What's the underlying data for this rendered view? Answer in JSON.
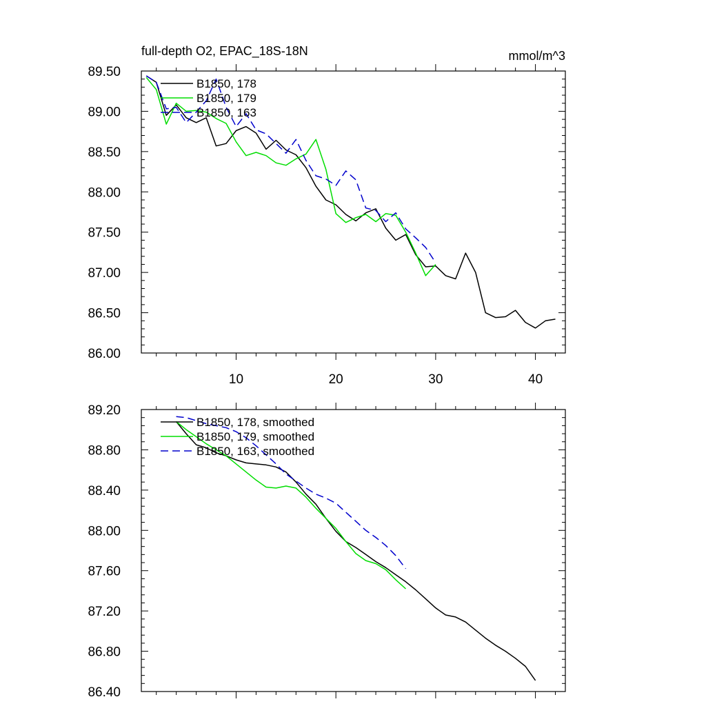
{
  "chart_data": [
    {
      "type": "line",
      "title": "full-depth O2, EPAC_18S-18N",
      "units": "mmol/m^3",
      "xlim": [
        0.5,
        43
      ],
      "ylim": [
        86.0,
        89.5
      ],
      "xticks": [
        10,
        20,
        30,
        40
      ],
      "yticks": [
        86.0,
        86.5,
        87.0,
        87.5,
        88.0,
        88.5,
        89.0,
        89.5
      ],
      "ytick_labels": [
        "86.00",
        "86.50",
        "87.00",
        "87.50",
        "88.00",
        "88.50",
        "89.00",
        "89.50"
      ],
      "xtick_labels": [
        "10",
        "20",
        "30",
        "40"
      ],
      "legend_position": "top-left",
      "series": [
        {
          "name": "B1850, 178",
          "color": "#000000",
          "dash": "solid",
          "x": [
            1,
            2,
            3,
            4,
            5,
            6,
            7,
            8,
            9,
            10,
            11,
            12,
            13,
            14,
            15,
            16,
            17,
            18,
            19,
            20,
            21,
            22,
            23,
            24,
            25,
            26,
            27,
            28,
            29,
            30,
            31,
            32,
            33,
            34,
            35,
            36,
            37,
            38,
            39,
            40,
            41,
            42
          ],
          "y": [
            89.44,
            89.36,
            88.95,
            89.08,
            88.92,
            88.86,
            88.92,
            88.57,
            88.6,
            88.76,
            88.81,
            88.73,
            88.53,
            88.64,
            88.52,
            88.46,
            88.3,
            88.07,
            87.9,
            87.84,
            87.72,
            87.64,
            87.74,
            87.79,
            87.55,
            87.4,
            87.47,
            87.22,
            87.07,
            87.08,
            86.96,
            86.92,
            87.24,
            87.0,
            86.5,
            86.44,
            86.45,
            86.53,
            86.38,
            86.31,
            86.4,
            86.42
          ]
        },
        {
          "name": "B1850, 179",
          "color": "#00dd00",
          "dash": "solid",
          "x": [
            1,
            2,
            3,
            4,
            5,
            6,
            7,
            8,
            9,
            10,
            11,
            12,
            13,
            14,
            15,
            16,
            17,
            18,
            19,
            20,
            21,
            22,
            23,
            24,
            25,
            26,
            27,
            28,
            29,
            30
          ],
          "y": [
            89.42,
            89.27,
            88.84,
            89.1,
            89.0,
            89.01,
            88.99,
            88.91,
            88.85,
            88.62,
            88.45,
            88.49,
            88.45,
            88.36,
            88.33,
            88.41,
            88.47,
            88.65,
            88.28,
            87.73,
            87.62,
            87.68,
            87.72,
            87.63,
            87.73,
            87.71,
            87.5,
            87.24,
            86.96,
            87.1
          ]
        },
        {
          "name": "B1850, 163",
          "color": "#0000cc",
          "dash": "dashed",
          "x": [
            1,
            2,
            3,
            4,
            5,
            6,
            7,
            8,
            9,
            10,
            11,
            12,
            13,
            14,
            15,
            16,
            17,
            18,
            19,
            20,
            21,
            22,
            23,
            24,
            25,
            26,
            27,
            28,
            29,
            30
          ],
          "y": [
            89.44,
            89.36,
            89.03,
            89.05,
            88.86,
            88.99,
            89.13,
            89.4,
            89.05,
            88.81,
            88.97,
            88.77,
            88.72,
            88.6,
            88.48,
            88.65,
            88.39,
            88.2,
            88.16,
            88.08,
            88.26,
            88.15,
            87.8,
            87.77,
            87.63,
            87.74,
            87.54,
            87.43,
            87.31,
            87.12
          ]
        }
      ]
    },
    {
      "type": "line",
      "xlim": [
        0.5,
        43
      ],
      "ylim": [
        86.4,
        89.2
      ],
      "xticks": [
        10,
        20,
        30,
        40
      ],
      "yticks": [
        86.4,
        86.8,
        87.2,
        87.6,
        88.0,
        88.4,
        88.8,
        89.2
      ],
      "ytick_labels": [
        "86.40",
        "86.80",
        "87.20",
        "87.60",
        "88.00",
        "88.40",
        "88.80",
        "89.20"
      ],
      "legend_position": "top-left",
      "series": [
        {
          "name": "B1850, 178, smoothed",
          "color": "#000000",
          "dash": "solid",
          "x": [
            4,
            5,
            6,
            7,
            8,
            9,
            10,
            11,
            12,
            13,
            14,
            15,
            16,
            17,
            18,
            19,
            20,
            21,
            22,
            23,
            24,
            25,
            26,
            27,
            28,
            29,
            30,
            31,
            32,
            33,
            34,
            35,
            36,
            37,
            38,
            39,
            40
          ],
          "y": [
            89.08,
            88.96,
            88.85,
            88.82,
            88.77,
            88.74,
            88.7,
            88.67,
            88.66,
            88.65,
            88.63,
            88.58,
            88.48,
            88.36,
            88.26,
            88.12,
            87.99,
            87.89,
            87.83,
            87.76,
            87.69,
            87.63,
            87.56,
            87.49,
            87.41,
            87.32,
            87.23,
            87.16,
            87.14,
            87.09,
            87.01,
            86.93,
            86.86,
            86.8,
            86.73,
            86.65,
            86.51
          ]
        },
        {
          "name": "B1850, 179, smoothed",
          "color": "#00dd00",
          "dash": "solid",
          "x": [
            4,
            5,
            6,
            7,
            8,
            9,
            10,
            11,
            12,
            13,
            14,
            15,
            16,
            17,
            18,
            19,
            20,
            21,
            22,
            23,
            24,
            25,
            26,
            27
          ],
          "y": [
            89.08,
            89.0,
            88.93,
            88.86,
            88.8,
            88.74,
            88.66,
            88.58,
            88.5,
            88.43,
            88.42,
            88.44,
            88.42,
            88.33,
            88.22,
            88.12,
            88.02,
            87.89,
            87.77,
            87.7,
            87.67,
            87.61,
            87.51,
            87.42
          ]
        },
        {
          "name": "B1850, 163, smoothed",
          "color": "#0000cc",
          "dash": "dashed",
          "x": [
            4,
            5,
            6,
            7,
            8,
            9,
            10,
            11,
            12,
            13,
            14,
            15,
            16,
            17,
            18,
            19,
            20,
            21,
            22,
            23,
            24,
            25,
            26,
            27
          ],
          "y": [
            89.13,
            89.12,
            89.09,
            89.06,
            89.04,
            89.02,
            88.98,
            88.92,
            88.84,
            88.75,
            88.66,
            88.56,
            88.49,
            88.42,
            88.36,
            88.32,
            88.27,
            88.18,
            88.09,
            88.0,
            87.93,
            87.85,
            87.75,
            87.62
          ]
        }
      ]
    }
  ]
}
